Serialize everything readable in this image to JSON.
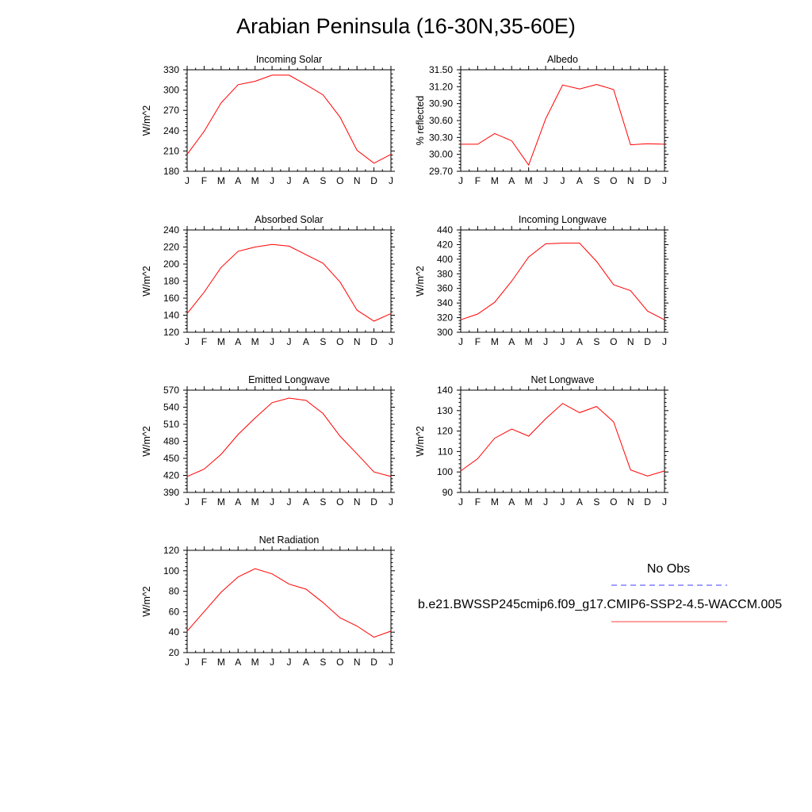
{
  "title": "Arabian Peninsula (16-30N,35-60E)",
  "colors": {
    "model_line": "#ff0000",
    "obs_line": "#0000ff",
    "axes": "#000000"
  },
  "legend": {
    "no_obs_label": "No Obs",
    "model_label": "b.e21.BWSSP245cmip6.f09_g17.CMIP6-SSP2-4.5-WACCM.005"
  },
  "chart_data": [
    {
      "type": "line",
      "title": "Incoming Solar",
      "ylabel": "W/m^2",
      "categories": [
        "J",
        "F",
        "M",
        "A",
        "M",
        "J",
        "J",
        "A",
        "S",
        "O",
        "N",
        "D",
        "J"
      ],
      "yticks": [
        "180",
        "210",
        "240",
        "270",
        "300",
        "330"
      ],
      "ylim": [
        180,
        330
      ],
      "series": [
        {
          "values": [
            205,
            239,
            281,
            308,
            313,
            322,
            322,
            308,
            293,
            260,
            211,
            192,
            205
          ]
        }
      ]
    },
    {
      "type": "line",
      "title": "Albedo",
      "ylabel": "% reflected",
      "categories": [
        "J",
        "F",
        "M",
        "A",
        "M",
        "J",
        "J",
        "A",
        "S",
        "O",
        "N",
        "D",
        "J"
      ],
      "yticks": [
        "29.70",
        "30.00",
        "30.30",
        "30.60",
        "30.90",
        "31.20",
        "31.50"
      ],
      "ylim": [
        29.7,
        31.5
      ],
      "series": [
        {
          "values": [
            30.18,
            30.18,
            30.37,
            30.24,
            29.81,
            30.63,
            31.23,
            31.16,
            31.24,
            31.15,
            30.17,
            30.19,
            30.18
          ]
        }
      ]
    },
    {
      "type": "line",
      "title": "Absorbed Solar",
      "ylabel": "W/m^2",
      "categories": [
        "J",
        "F",
        "M",
        "A",
        "M",
        "J",
        "J",
        "A",
        "S",
        "O",
        "N",
        "D",
        "J"
      ],
      "yticks": [
        "120",
        "140",
        "160",
        "180",
        "200",
        "220",
        "240"
      ],
      "ylim": [
        120,
        240
      ],
      "series": [
        {
          "values": [
            142,
            167,
            196,
            215,
            220,
            223,
            221,
            211,
            201,
            179,
            146,
            133,
            142
          ]
        }
      ]
    },
    {
      "type": "line",
      "title": "Incoming Longwave",
      "ylabel": "W/m^2",
      "categories": [
        "J",
        "F",
        "M",
        "A",
        "M",
        "J",
        "J",
        "A",
        "S",
        "O",
        "N",
        "D",
        "J"
      ],
      "yticks": [
        "300",
        "320",
        "340",
        "360",
        "380",
        "400",
        "420",
        "440"
      ],
      "ylim": [
        300,
        440
      ],
      "series": [
        {
          "values": [
            317,
            325,
            341,
            370,
            403,
            421,
            422,
            422,
            397,
            365,
            357,
            329,
            317
          ]
        }
      ]
    },
    {
      "type": "line",
      "title": "Emitted Longwave",
      "ylabel": "W/m^2",
      "categories": [
        "J",
        "F",
        "M",
        "A",
        "M",
        "J",
        "J",
        "A",
        "S",
        "O",
        "N",
        "D",
        "J"
      ],
      "yticks": [
        "390",
        "420",
        "450",
        "480",
        "510",
        "540",
        "570"
      ],
      "ylim": [
        390,
        570
      ],
      "series": [
        {
          "values": [
            418,
            431,
            457,
            492,
            521,
            548,
            556,
            552,
            529,
            489,
            458,
            426,
            418
          ]
        }
      ]
    },
    {
      "type": "line",
      "title": "Net Longwave",
      "ylabel": "W/m^2",
      "categories": [
        "J",
        "F",
        "M",
        "A",
        "M",
        "J",
        "J",
        "A",
        "S",
        "O",
        "N",
        "D",
        "J"
      ],
      "yticks": [
        "90",
        "100",
        "110",
        "120",
        "130",
        "140"
      ],
      "ylim": [
        90,
        140
      ],
      "series": [
        {
          "values": [
            100.5,
            106.5,
            116.5,
            121.0,
            117.5,
            126.0,
            133.5,
            129.0,
            132.0,
            124.5,
            101.0,
            98.0,
            100.5
          ]
        }
      ]
    },
    {
      "type": "line",
      "title": "Net Radiation",
      "ylabel": "W/m^2",
      "categories": [
        "J",
        "F",
        "M",
        "A",
        "M",
        "J",
        "J",
        "A",
        "S",
        "O",
        "N",
        "D",
        "J"
      ],
      "yticks": [
        "20",
        "40",
        "60",
        "80",
        "100",
        "120"
      ],
      "ylim": [
        20,
        120
      ],
      "series": [
        {
          "values": [
            41,
            60,
            79,
            94,
            102,
            97,
            87,
            82,
            69,
            54,
            46,
            35,
            41
          ]
        }
      ]
    }
  ]
}
